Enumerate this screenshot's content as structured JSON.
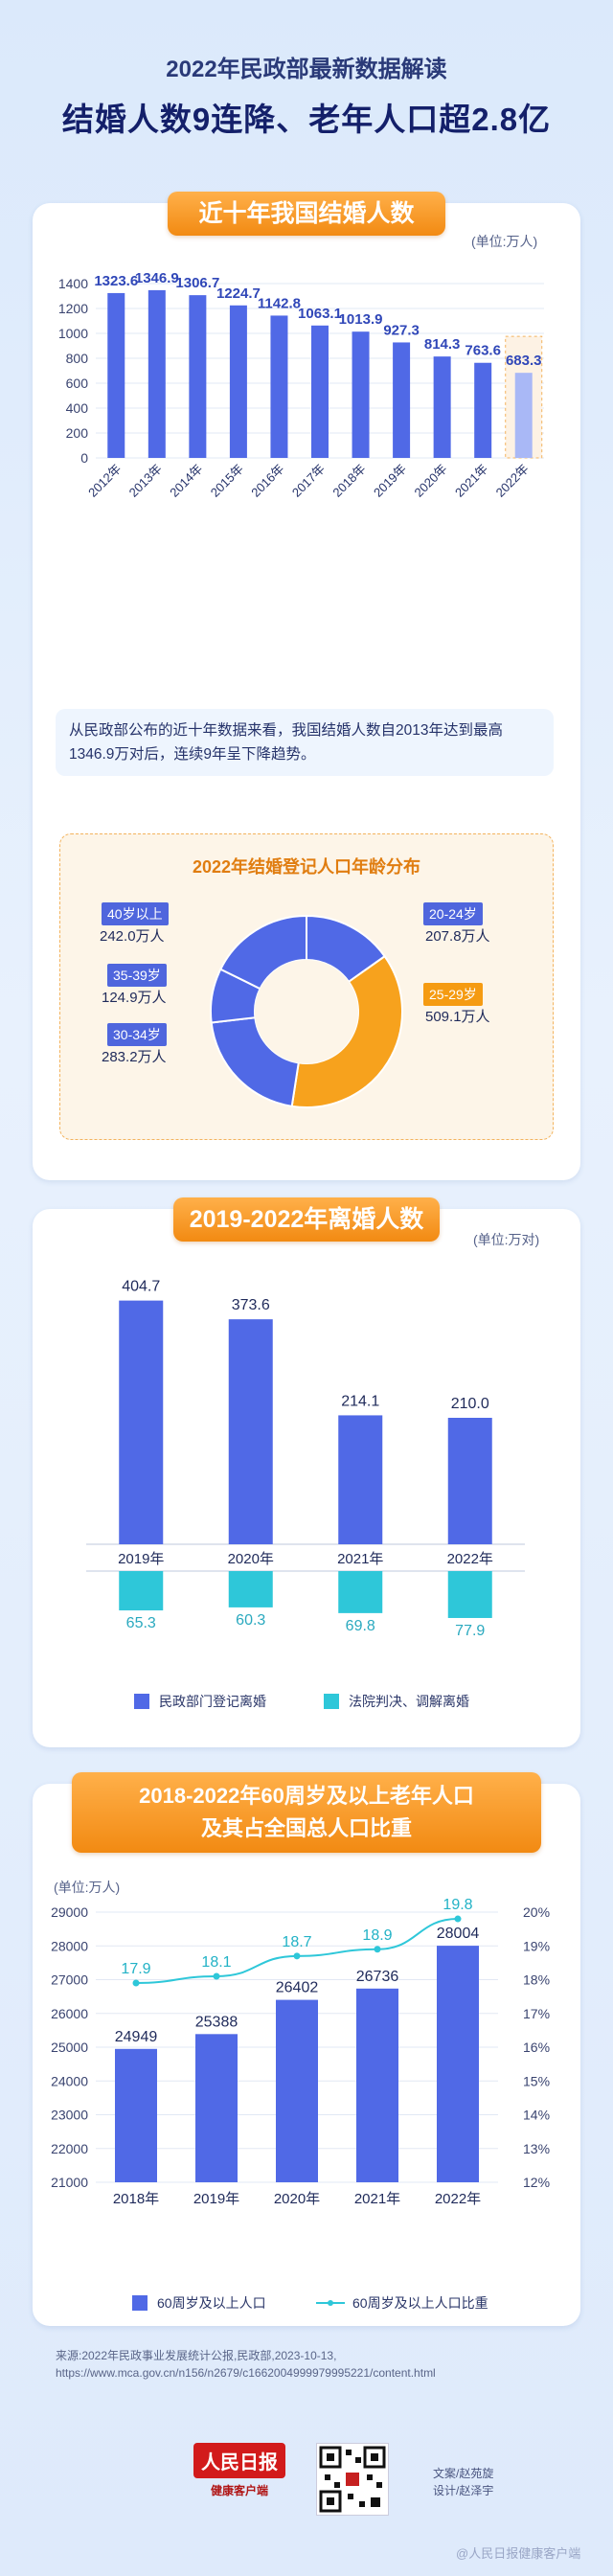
{
  "header": {
    "subtitle": "2022年民政部最新数据解读",
    "title": "结婚人数9连降、老年人口超2.8亿"
  },
  "section1": {
    "pill": "近十年我国结婚人数",
    "unit": "(单位:万人)",
    "note": "从民政部公布的近十年数据来看，我国结婚人数自2013年达到最高1346.9万对后，连续9年呈下降趋势。",
    "age_title": "2022年结婚登记人口年龄分布",
    "age_labels": [
      {
        "tag": "40岁以上",
        "value": "242.0万人"
      },
      {
        "tag": "35-39岁",
        "value": "124.9万人"
      },
      {
        "tag": "30-34岁",
        "value": "283.2万人"
      },
      {
        "tag": "20-24岁",
        "value": "207.8万人"
      },
      {
        "tag": "25-29岁",
        "value": "509.1万人"
      }
    ]
  },
  "section2": {
    "pill": "2019-2022年离婚人数",
    "unit": "(单位:万对)",
    "legend": [
      "民政部门登记离婚",
      "法院判决、调解离婚"
    ]
  },
  "section3": {
    "pill_line1": "2018-2022年60周岁及以上老年人口",
    "pill_line2": "及其占全国总人口比重",
    "unit": "(单位:万人)",
    "legend": [
      "60周岁及以上人口",
      "60周岁及以上人口比重"
    ]
  },
  "footer": {
    "source_line1": "来源:2022年民政事业发展统计公报,民政部,2023-10-13,",
    "source_line2": "https://www.mca.gov.cn/n156/n2679/c1662004999979995221/content.html",
    "logo_line1": "人民日报",
    "logo_line2": "健康客户端",
    "credit1": "文案/赵苑旋",
    "credit2": "设计/赵泽宇",
    "watermark": "@人民日报健康客户端"
  },
  "colors": {
    "blue": "#5069e6",
    "blue_light": "#a9b8f6",
    "cyan": "#2ec7d9",
    "orange": "#f7a21d",
    "navy": "#1f2a5a"
  },
  "chart_data": [
    {
      "type": "bar",
      "title": "近十年我国结婚人数",
      "ylabel": "(单位:万人)",
      "categories": [
        "2012年",
        "2013年",
        "2014年",
        "2015年",
        "2016年",
        "2017年",
        "2018年",
        "2019年",
        "2020年",
        "2021年",
        "2022年"
      ],
      "values": [
        1323.6,
        1346.9,
        1306.7,
        1224.7,
        1142.8,
        1063.1,
        1013.9,
        927.3,
        814.3,
        763.6,
        683.3
      ],
      "ylim": [
        0,
        1400
      ],
      "yticks": [
        0,
        200,
        400,
        600,
        800,
        1000,
        1200,
        1400
      ],
      "highlight_last": true
    },
    {
      "type": "pie",
      "title": "2022年结婚登记人口年龄分布",
      "labels": [
        "20-24岁",
        "25-29岁",
        "30-34岁",
        "35-39岁",
        "40岁以上"
      ],
      "values": [
        207.8,
        509.1,
        283.2,
        124.9,
        242.0
      ],
      "colors": [
        "#5069e6",
        "#f7a21d",
        "#5069e6",
        "#5069e6",
        "#5069e6"
      ]
    },
    {
      "type": "bar",
      "title": "2019-2022年离婚人数",
      "ylabel": "(单位:万对)",
      "categories": [
        "2019年",
        "2020年",
        "2021年",
        "2022年"
      ],
      "series": [
        {
          "name": "民政部门登记离婚",
          "values": [
            404.7,
            373.6,
            214.1,
            210.0
          ]
        },
        {
          "name": "法院判决、调解离婚",
          "values": [
            65.3,
            60.3,
            69.8,
            77.9
          ]
        }
      ],
      "ylim": [
        0,
        420
      ]
    },
    {
      "type": "bar",
      "title": "2018-2022年60周岁及以上老年人口及其占全国总人口比重",
      "ylabel": "(单位:万人)",
      "categories": [
        "2018年",
        "2019年",
        "2020年",
        "2021年",
        "2022年"
      ],
      "series": [
        {
          "name": "60周岁及以上人口",
          "values": [
            24949,
            25388,
            26402,
            26736,
            28004
          ],
          "type": "bar"
        },
        {
          "name": "60周岁及以上人口比重",
          "values": [
            17.9,
            18.1,
            18.7,
            18.9,
            19.8
          ],
          "type": "line",
          "axis": "right",
          "unit": "%"
        }
      ],
      "ylim": [
        21000,
        29000
      ],
      "yticks": [
        21000,
        22000,
        23000,
        24000,
        25000,
        26000,
        27000,
        28000,
        29000
      ],
      "y2lim": [
        12,
        20
      ],
      "y2ticks": [
        "12%",
        "13%",
        "14%",
        "15%",
        "16%",
        "17%",
        "18%",
        "19%",
        "20%"
      ]
    }
  ]
}
